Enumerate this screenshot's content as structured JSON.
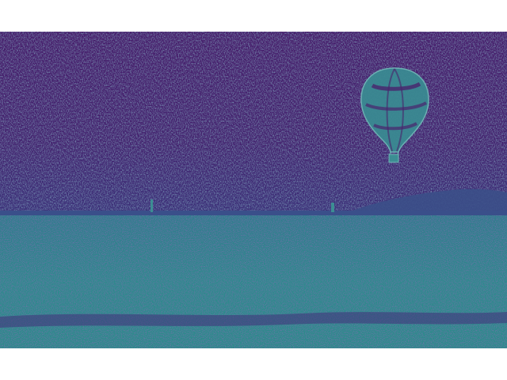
{
  "image": {
    "palette": {
      "sky_dark": "#3f1a63",
      "sky_mid": "#452a74",
      "sky_noise": "#3d6f8f",
      "field": "#2f8a8c",
      "field_noise": "#40207a",
      "horizon": "#3a4f8a",
      "balloon_fill": "#3c8d93",
      "balloon_stripe": "#4a236d",
      "border": "#ffffff"
    },
    "subjects": [
      "hot-air-balloon",
      "open-field",
      "distant-hills",
      "night-sky"
    ]
  }
}
